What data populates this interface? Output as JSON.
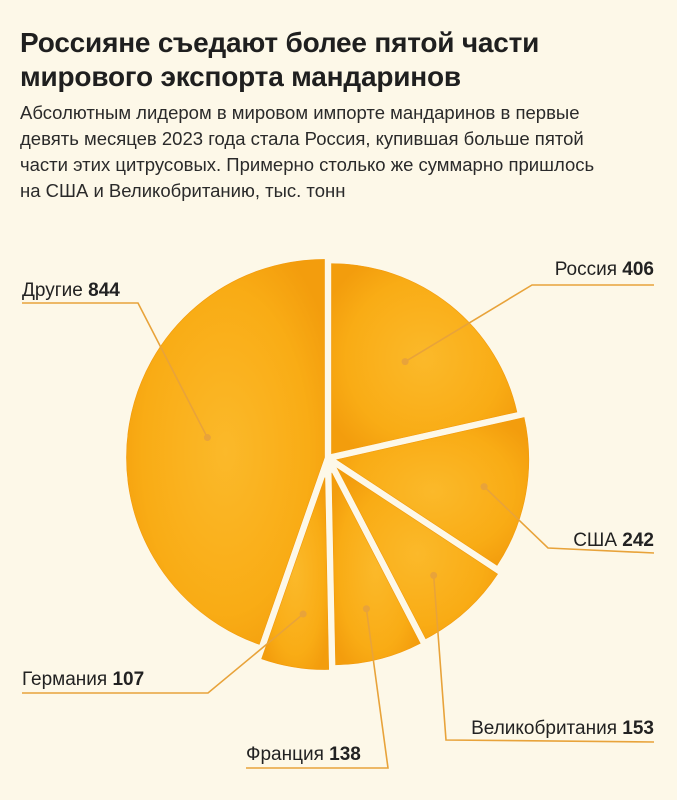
{
  "header": {
    "title_line1": "Россияне съедают более пятой части",
    "title_line2": "мирового экспорта мандаринов",
    "subtitle_lines": [
      "Абсолютным лидером в мировом импорте мандаринов в первые",
      "девять месяцев 2023 года стала Россия, купившая больше пятой",
      "части этих цитрусовых. Примерно столько же суммарно пришлось",
      "на США и Великобританию, тыс. тонн"
    ]
  },
  "colors": {
    "slice_fill": "#f9ad14",
    "slice_fill_dark": "#f29a0c",
    "leader_line": "#e8a33a",
    "background": "#fdf8e8"
  },
  "chart_data": {
    "type": "pie",
    "unit": "тыс. тонн",
    "slices": [
      {
        "name": "Россия",
        "value": 406,
        "label_side": "right"
      },
      {
        "name": "США",
        "value": 242,
        "label_side": "right"
      },
      {
        "name": "Великобритания",
        "value": 153,
        "label_side": "right"
      },
      {
        "name": "Франция",
        "value": 138,
        "label_side": "left"
      },
      {
        "name": "Германия",
        "value": 107,
        "label_side": "left"
      },
      {
        "name": "Другие",
        "value": 844,
        "label_side": "left"
      }
    ]
  }
}
